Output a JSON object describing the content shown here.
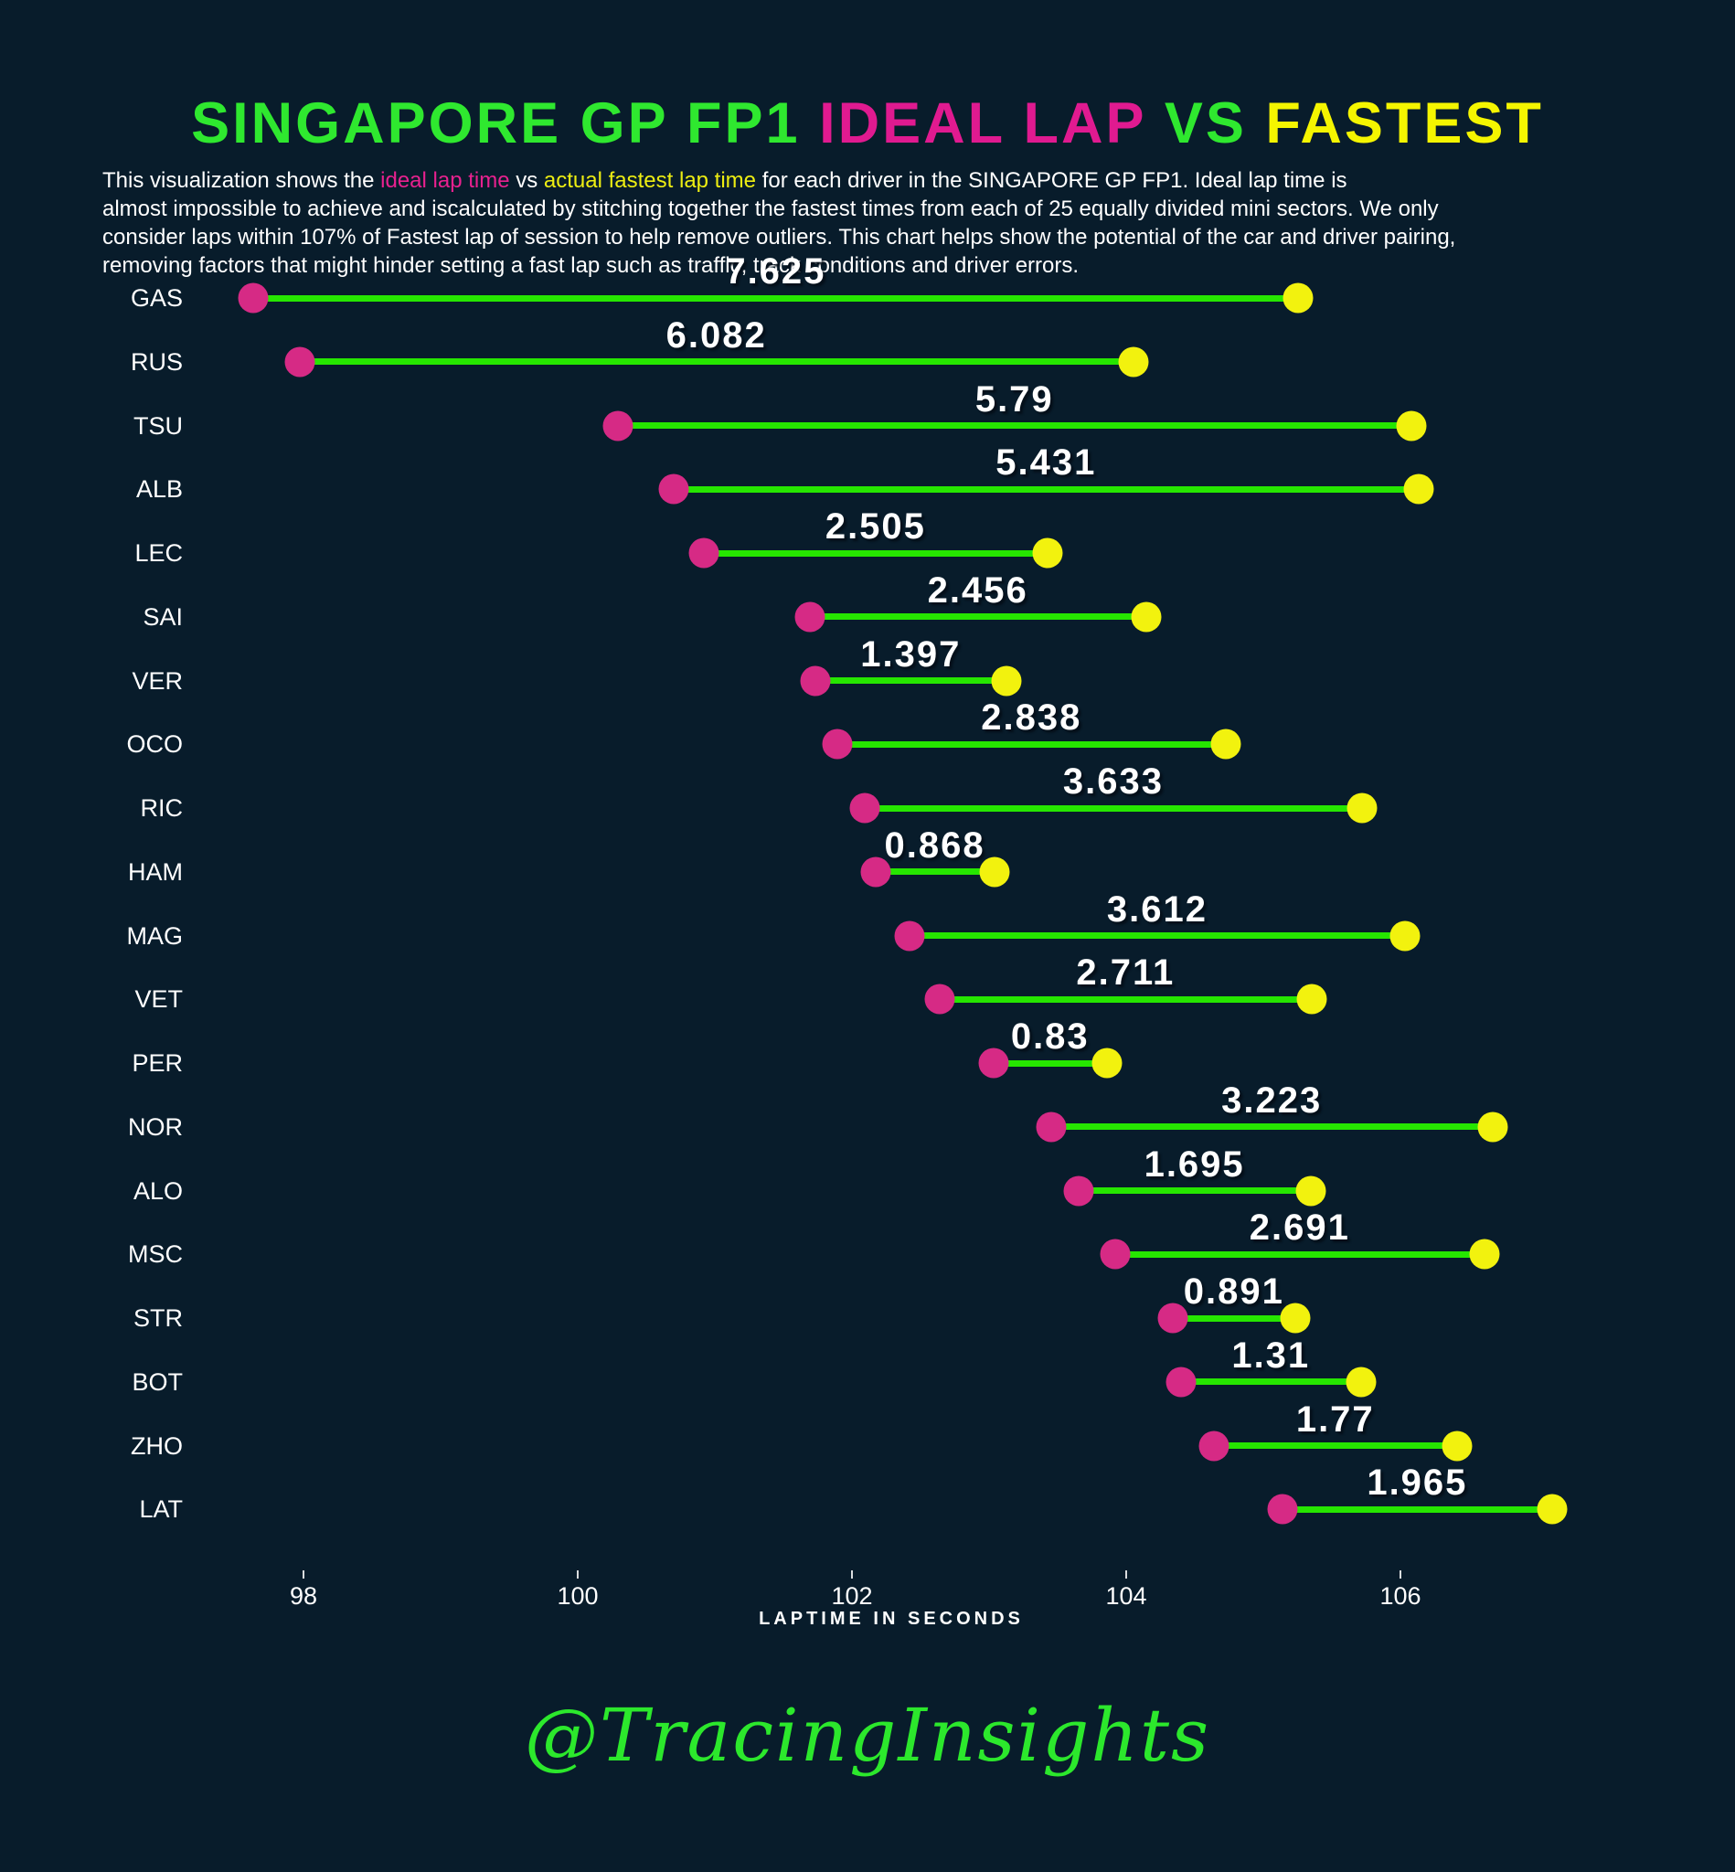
{
  "page": {
    "background": "#081c2b"
  },
  "title": {
    "segments": [
      {
        "text": "SINGAPORE GP FP1 ",
        "color": "#2fe82f"
      },
      {
        "text": "IDEAL LAP ",
        "color": "#e01a90"
      },
      {
        "text": "VS ",
        "color": "#2fe82f"
      },
      {
        "text": "FASTEST",
        "color": "#f5f500"
      }
    ]
  },
  "subtitle": {
    "segments": [
      {
        "text": "This visualization shows the ",
        "color": "#ffffff"
      },
      {
        "text": "ideal lap time",
        "color": "#e8218f"
      },
      {
        "text": " vs ",
        "color": "#ffffff"
      },
      {
        "text": "actual fastest lap time",
        "color": "#eded12"
      },
      {
        "text": " for each driver in the SINGAPORE GP FP1. Ideal lap time is\nalmost impossible to achieve and iscalculated by stitching together the fastest times from each of 25 equally divided mini sectors. We only\nconsider laps within 107% of Fastest lap of session to help remove outliers. This chart helps show the potential of the car and driver pairing,\nremoving factors that might hinder setting a fast lap such as traffic, track conditions and driver errors.",
        "color": "#ffffff"
      }
    ]
  },
  "chart_data": {
    "type": "dumbbell",
    "title": "SINGAPORE GP FP1 IDEAL LAP VS FASTEST",
    "xlabel": "LAPTIME IN SECONDS",
    "x_ticks": [
      98,
      100,
      102,
      104,
      106
    ],
    "xlim": [
      97.2,
      107.8
    ],
    "grid": false,
    "colors": {
      "ideal_dot": "#d62a85",
      "fastest_dot": "#f2f20e",
      "connector_line": "#26e600",
      "label_text": "#ffffff"
    },
    "series_names": [
      "ideal lap time",
      "actual fastest lap time",
      "delta"
    ],
    "drivers": [
      {
        "code": "GAS",
        "ideal": 97.63,
        "fastest": 105.255,
        "delta_label": "7.625"
      },
      {
        "code": "RUS",
        "ideal": 97.97,
        "fastest": 104.052,
        "delta_label": "6.082"
      },
      {
        "code": "TSU",
        "ideal": 100.29,
        "fastest": 106.08,
        "delta_label": "5.79"
      },
      {
        "code": "ALB",
        "ideal": 100.7,
        "fastest": 106.131,
        "delta_label": "5.431"
      },
      {
        "code": "LEC",
        "ideal": 100.92,
        "fastest": 103.425,
        "delta_label": "2.505"
      },
      {
        "code": "SAI",
        "ideal": 101.69,
        "fastest": 104.146,
        "delta_label": "2.456"
      },
      {
        "code": "VER",
        "ideal": 101.73,
        "fastest": 103.127,
        "delta_label": "1.397"
      },
      {
        "code": "OCO",
        "ideal": 101.89,
        "fastest": 104.728,
        "delta_label": "2.838"
      },
      {
        "code": "RIC",
        "ideal": 102.09,
        "fastest": 105.723,
        "delta_label": "3.633"
      },
      {
        "code": "HAM",
        "ideal": 102.17,
        "fastest": 103.038,
        "delta_label": "0.868"
      },
      {
        "code": "MAG",
        "ideal": 102.42,
        "fastest": 106.032,
        "delta_label": "3.612"
      },
      {
        "code": "VET",
        "ideal": 102.64,
        "fastest": 105.351,
        "delta_label": "2.711"
      },
      {
        "code": "PER",
        "ideal": 103.03,
        "fastest": 103.86,
        "delta_label": "0.83"
      },
      {
        "code": "NOR",
        "ideal": 103.45,
        "fastest": 106.673,
        "delta_label": "3.223"
      },
      {
        "code": "ALO",
        "ideal": 103.65,
        "fastest": 105.345,
        "delta_label": "1.695"
      },
      {
        "code": "MSC",
        "ideal": 103.92,
        "fastest": 106.611,
        "delta_label": "2.691"
      },
      {
        "code": "STR",
        "ideal": 104.34,
        "fastest": 105.231,
        "delta_label": "0.891"
      },
      {
        "code": "BOT",
        "ideal": 104.4,
        "fastest": 105.71,
        "delta_label": "1.31"
      },
      {
        "code": "ZHO",
        "ideal": 104.64,
        "fastest": 106.41,
        "delta_label": "1.77"
      },
      {
        "code": "LAT",
        "ideal": 105.14,
        "fastest": 107.105,
        "delta_label": "1.965"
      }
    ]
  },
  "footer": {
    "signature": "@TracingInsights"
  }
}
